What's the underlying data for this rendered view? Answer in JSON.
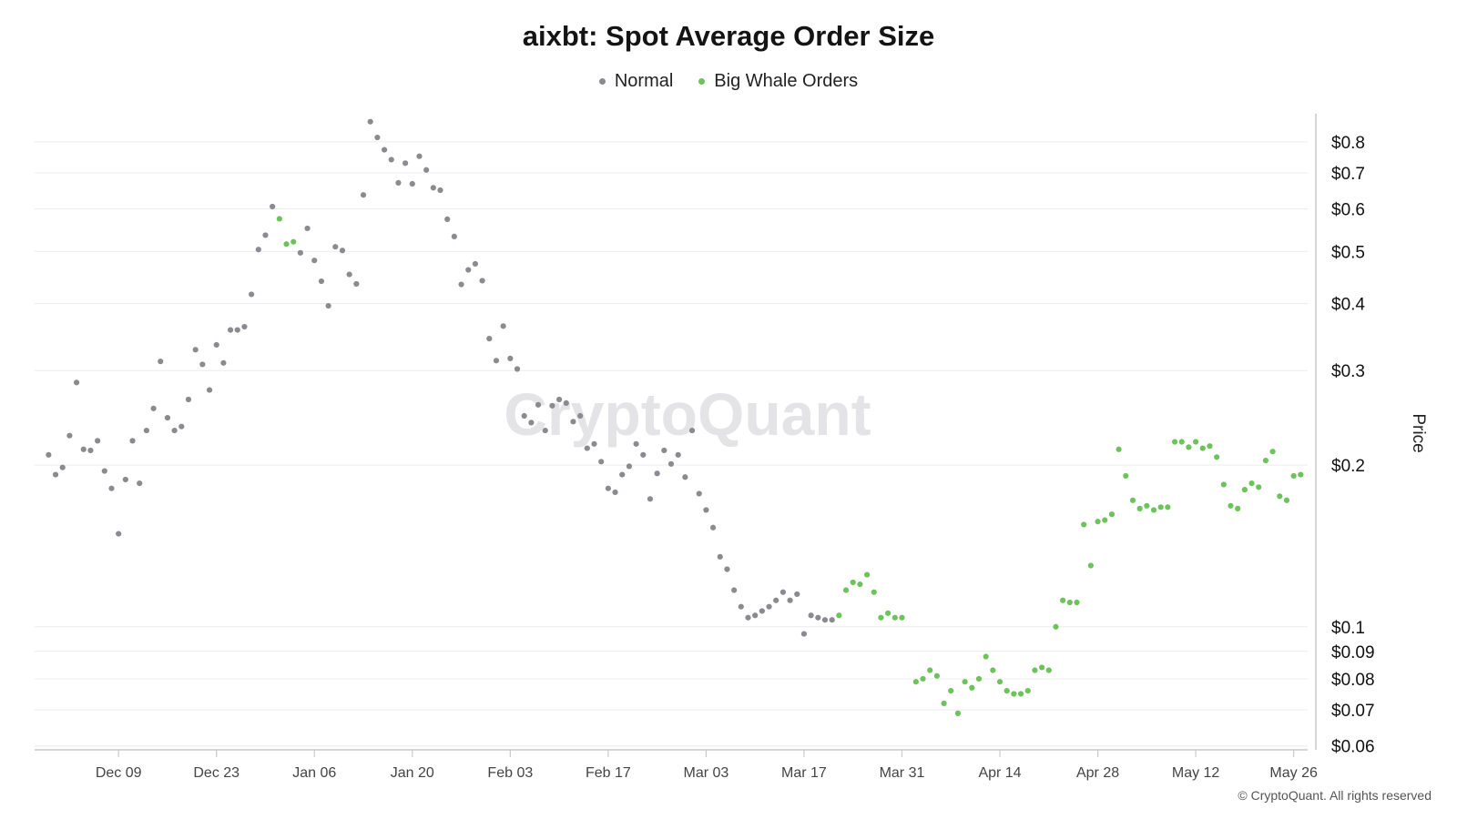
{
  "chart_data": {
    "type": "scatter",
    "title": "aixbt: Spot Average Order Size",
    "ylabel": "Price",
    "xlabel": "",
    "y_scale": "log",
    "ylim": [
      0.059,
      0.92
    ],
    "xlim": [
      "2024-11-27",
      "2025-05-28"
    ],
    "y_ticks": [
      0.06,
      0.07,
      0.08,
      0.09,
      0.1,
      0.2,
      0.3,
      0.4,
      0.5,
      0.6,
      0.7,
      0.8
    ],
    "y_tick_labels": [
      "$0.06",
      "$0.07",
      "$0.08",
      "$0.09",
      "$0.1",
      "$0.2",
      "$0.3",
      "$0.4",
      "$0.5",
      "$0.6",
      "$0.7",
      "$0.8"
    ],
    "x_ticks": [
      "2024-12-09",
      "2024-12-23",
      "2025-01-06",
      "2025-01-20",
      "2025-02-03",
      "2025-02-17",
      "2025-03-03",
      "2025-03-17",
      "2025-03-31",
      "2025-04-14",
      "2025-04-28",
      "2025-05-12",
      "2025-05-26"
    ],
    "x_tick_labels": [
      "Dec 09",
      "Dec 23",
      "Jan 06",
      "Jan 20",
      "Feb 03",
      "Feb 17",
      "Mar 03",
      "Mar 17",
      "Mar 31",
      "Apr 14",
      "Apr 28",
      "May 12",
      "May 26"
    ],
    "grid": true,
    "legend_position": "top-center",
    "series": [
      {
        "name": "Normal",
        "color": "#8c8a91",
        "points": [
          [
            "2024-11-29",
            0.209
          ],
          [
            "2024-11-30",
            0.192
          ],
          [
            "2024-12-01",
            0.198
          ],
          [
            "2024-12-02",
            0.227
          ],
          [
            "2024-12-03",
            0.285
          ],
          [
            "2024-12-04",
            0.214
          ],
          [
            "2024-12-05",
            0.213
          ],
          [
            "2024-12-06",
            0.222
          ],
          [
            "2024-12-07",
            0.195
          ],
          [
            "2024-12-08",
            0.181
          ],
          [
            "2024-12-09",
            0.149
          ],
          [
            "2024-12-10",
            0.188
          ],
          [
            "2024-12-11",
            0.222
          ],
          [
            "2024-12-12",
            0.185
          ],
          [
            "2024-12-13",
            0.232
          ],
          [
            "2024-12-14",
            0.255
          ],
          [
            "2024-12-15",
            0.312
          ],
          [
            "2024-12-16",
            0.245
          ],
          [
            "2024-12-17",
            0.232
          ],
          [
            "2024-12-18",
            0.236
          ],
          [
            "2024-12-19",
            0.265
          ],
          [
            "2024-12-20",
            0.328
          ],
          [
            "2024-12-21",
            0.308
          ],
          [
            "2024-12-22",
            0.276
          ],
          [
            "2024-12-23",
            0.335
          ],
          [
            "2024-12-24",
            0.31
          ],
          [
            "2024-12-25",
            0.357
          ],
          [
            "2024-12-26",
            0.357
          ],
          [
            "2024-12-27",
            0.362
          ],
          [
            "2024-12-28",
            0.416
          ],
          [
            "2024-12-29",
            0.504
          ],
          [
            "2024-12-30",
            0.536
          ],
          [
            "2024-12-31",
            0.606
          ],
          [
            "2025-01-04",
            0.497
          ],
          [
            "2025-01-05",
            0.552
          ],
          [
            "2025-01-06",
            0.481
          ],
          [
            "2025-01-07",
            0.44
          ],
          [
            "2025-01-08",
            0.396
          ],
          [
            "2025-01-09",
            0.51
          ],
          [
            "2025-01-10",
            0.502
          ],
          [
            "2025-01-11",
            0.453
          ],
          [
            "2025-01-12",
            0.435
          ],
          [
            "2025-01-13",
            0.637
          ],
          [
            "2025-01-14",
            0.872
          ],
          [
            "2025-01-15",
            0.815
          ],
          [
            "2025-01-16",
            0.773
          ],
          [
            "2025-01-17",
            0.741
          ],
          [
            "2025-01-18",
            0.671
          ],
          [
            "2025-01-19",
            0.73
          ],
          [
            "2025-01-20",
            0.668
          ],
          [
            "2025-01-21",
            0.752
          ],
          [
            "2025-01-22",
            0.709
          ],
          [
            "2025-01-23",
            0.657
          ],
          [
            "2025-01-24",
            0.65
          ],
          [
            "2025-01-25",
            0.574
          ],
          [
            "2025-01-26",
            0.533
          ],
          [
            "2025-01-27",
            0.434
          ],
          [
            "2025-01-28",
            0.462
          ],
          [
            "2025-01-29",
            0.474
          ],
          [
            "2025-01-30",
            0.441
          ],
          [
            "2025-01-31",
            0.344
          ],
          [
            "2025-02-01",
            0.313
          ],
          [
            "2025-02-02",
            0.363
          ],
          [
            "2025-02-03",
            0.316
          ],
          [
            "2025-02-04",
            0.302
          ],
          [
            "2025-02-05",
            0.247
          ],
          [
            "2025-02-06",
            0.24
          ],
          [
            "2025-02-07",
            0.259
          ],
          [
            "2025-02-08",
            0.232
          ],
          [
            "2025-02-09",
            0.258
          ],
          [
            "2025-02-10",
            0.265
          ],
          [
            "2025-02-11",
            0.261
          ],
          [
            "2025-02-12",
            0.241
          ],
          [
            "2025-02-13",
            0.247
          ],
          [
            "2025-02-14",
            0.215
          ],
          [
            "2025-02-15",
            0.219
          ],
          [
            "2025-02-16",
            0.203
          ],
          [
            "2025-02-17",
            0.181
          ],
          [
            "2025-02-18",
            0.178
          ],
          [
            "2025-02-19",
            0.192
          ],
          [
            "2025-02-20",
            0.199
          ],
          [
            "2025-02-21",
            0.219
          ],
          [
            "2025-02-22",
            0.209
          ],
          [
            "2025-02-23",
            0.173
          ],
          [
            "2025-02-24",
            0.193
          ],
          [
            "2025-02-25",
            0.213
          ],
          [
            "2025-02-26",
            0.201
          ],
          [
            "2025-02-27",
            0.209
          ],
          [
            "2025-02-28",
            0.19
          ],
          [
            "2025-03-01",
            0.232
          ],
          [
            "2025-03-02",
            0.177
          ],
          [
            "2025-03-03",
            0.165
          ],
          [
            "2025-03-04",
            0.153
          ],
          [
            "2025-03-05",
            0.135
          ],
          [
            "2025-03-06",
            0.128
          ],
          [
            "2025-03-07",
            0.117
          ],
          [
            "2025-03-08",
            0.109
          ],
          [
            "2025-03-09",
            0.104
          ],
          [
            "2025-03-10",
            0.105
          ],
          [
            "2025-03-11",
            0.107
          ],
          [
            "2025-03-12",
            0.109
          ],
          [
            "2025-03-13",
            0.112
          ],
          [
            "2025-03-14",
            0.116
          ],
          [
            "2025-03-15",
            0.112
          ],
          [
            "2025-03-16",
            0.115
          ],
          [
            "2025-03-17",
            0.097
          ],
          [
            "2025-03-18",
            0.105
          ],
          [
            "2025-03-19",
            0.104
          ],
          [
            "2025-03-20",
            0.103
          ],
          [
            "2025-03-21",
            0.103
          ]
        ]
      },
      {
        "name": "Big Whale Orders",
        "color": "#6cc35a",
        "points": [
          [
            "2025-01-01",
            0.575
          ],
          [
            "2025-01-02",
            0.516
          ],
          [
            "2025-01-03",
            0.521
          ],
          [
            "2025-03-22",
            0.105
          ],
          [
            "2025-03-23",
            0.117
          ],
          [
            "2025-03-24",
            0.121
          ],
          [
            "2025-03-25",
            0.12
          ],
          [
            "2025-03-26",
            0.125
          ],
          [
            "2025-03-27",
            0.116
          ],
          [
            "2025-03-28",
            0.104
          ],
          [
            "2025-03-29",
            0.106
          ],
          [
            "2025-03-30",
            0.104
          ],
          [
            "2025-03-31",
            0.104
          ],
          [
            "2025-04-02",
            0.079
          ],
          [
            "2025-04-03",
            0.08
          ],
          [
            "2025-04-04",
            0.083
          ],
          [
            "2025-04-05",
            0.081
          ],
          [
            "2025-04-06",
            0.072
          ],
          [
            "2025-04-07",
            0.076
          ],
          [
            "2025-04-08",
            0.069
          ],
          [
            "2025-04-09",
            0.079
          ],
          [
            "2025-04-10",
            0.077
          ],
          [
            "2025-04-11",
            0.08
          ],
          [
            "2025-04-12",
            0.088
          ],
          [
            "2025-04-13",
            0.083
          ],
          [
            "2025-04-14",
            0.079
          ],
          [
            "2025-04-15",
            0.076
          ],
          [
            "2025-04-16",
            0.075
          ],
          [
            "2025-04-17",
            0.075
          ],
          [
            "2025-04-18",
            0.076
          ],
          [
            "2025-04-19",
            0.083
          ],
          [
            "2025-04-20",
            0.084
          ],
          [
            "2025-04-21",
            0.083
          ],
          [
            "2025-04-22",
            0.1
          ],
          [
            "2025-04-23",
            0.112
          ],
          [
            "2025-04-24",
            0.111
          ],
          [
            "2025-04-25",
            0.111
          ],
          [
            "2025-04-26",
            0.155
          ],
          [
            "2025-04-27",
            0.13
          ],
          [
            "2025-04-28",
            0.157
          ],
          [
            "2025-04-29",
            0.158
          ],
          [
            "2025-04-30",
            0.162
          ],
          [
            "2025-05-01",
            0.214
          ],
          [
            "2025-05-02",
            0.191
          ],
          [
            "2025-05-03",
            0.172
          ],
          [
            "2025-05-04",
            0.166
          ],
          [
            "2025-05-05",
            0.168
          ],
          [
            "2025-05-06",
            0.165
          ],
          [
            "2025-05-07",
            0.167
          ],
          [
            "2025-05-08",
            0.167
          ],
          [
            "2025-05-09",
            0.221
          ],
          [
            "2025-05-10",
            0.221
          ],
          [
            "2025-05-11",
            0.216
          ],
          [
            "2025-05-12",
            0.221
          ],
          [
            "2025-05-13",
            0.215
          ],
          [
            "2025-05-14",
            0.217
          ],
          [
            "2025-05-15",
            0.207
          ],
          [
            "2025-05-16",
            0.184
          ],
          [
            "2025-05-17",
            0.168
          ],
          [
            "2025-05-18",
            0.166
          ],
          [
            "2025-05-19",
            0.18
          ],
          [
            "2025-05-20",
            0.185
          ],
          [
            "2025-05-21",
            0.182
          ],
          [
            "2025-05-22",
            0.204
          ],
          [
            "2025-05-23",
            0.212
          ],
          [
            "2025-05-24",
            0.175
          ],
          [
            "2025-05-25",
            0.172
          ],
          [
            "2025-05-26",
            0.191
          ],
          [
            "2025-05-27",
            0.192
          ]
        ]
      }
    ],
    "watermark": "CryptoQuant",
    "copyright": "© CryptoQuant. All rights reserved"
  }
}
